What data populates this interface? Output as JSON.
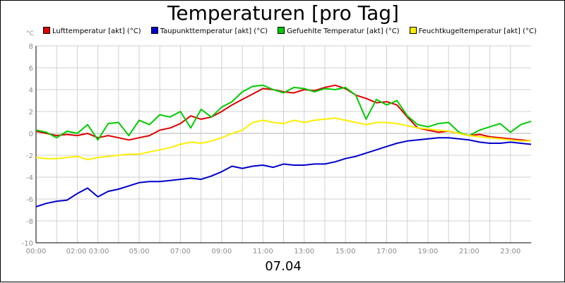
{
  "chart_data": {
    "type": "line",
    "title": "Temperaturen [pro Tag]",
    "unit_label": "°C",
    "xlabel": "07.04",
    "x_tick_labels": [
      "00:00",
      "02:00 03:00",
      "05:00",
      "07:00",
      "09:00",
      "11:00",
      "13:00",
      "15:00",
      "17:00",
      "19:00",
      "21:00",
      "23:00"
    ],
    "x_tick_hours": [
      0,
      2.5,
      5,
      7,
      9,
      11,
      13,
      15,
      17,
      19,
      21,
      23
    ],
    "xlim": [
      0,
      24
    ],
    "ylim": [
      -10,
      8
    ],
    "y_ticks": [
      8,
      6,
      4,
      2,
      0,
      -2,
      -4,
      -6,
      -8,
      -10
    ],
    "grid": true,
    "legend_position": "top",
    "x_hours": [
      0,
      0.5,
      1,
      1.5,
      2,
      2.5,
      3,
      3.5,
      4,
      4.5,
      5,
      5.5,
      6,
      6.5,
      7,
      7.5,
      8,
      8.5,
      9,
      9.5,
      10,
      10.5,
      11,
      11.5,
      12,
      12.5,
      13,
      13.5,
      14,
      14.5,
      15,
      15.5,
      16,
      16.5,
      17,
      17.5,
      18,
      18.5,
      19,
      19.5,
      20,
      20.5,
      21,
      21.5,
      22,
      22.5,
      23,
      23.5,
      24
    ],
    "series": [
      {
        "name": "Lufttemperatur [akt] (°C)",
        "color": "#e00000",
        "values": [
          0.2,
          0.0,
          -0.2,
          -0.1,
          -0.2,
          0.0,
          -0.4,
          -0.2,
          -0.4,
          -0.6,
          -0.4,
          -0.2,
          0.3,
          0.5,
          0.9,
          1.6,
          1.3,
          1.5,
          2.0,
          2.6,
          3.1,
          3.6,
          4.1,
          4.0,
          3.8,
          3.7,
          4.0,
          3.9,
          4.2,
          4.4,
          4.1,
          3.5,
          3.2,
          2.8,
          2.9,
          2.6,
          1.5,
          0.5,
          0.3,
          0.1,
          0.2,
          0.0,
          -0.2,
          -0.1,
          -0.3,
          -0.4,
          -0.5,
          -0.6,
          -0.7
        ]
      },
      {
        "name": "Taupunkttemperatur [akt] (°C)",
        "color": "#0000cc",
        "values": [
          -6.7,
          -6.4,
          -6.2,
          -6.1,
          -5.5,
          -5.0,
          -5.8,
          -5.3,
          -5.1,
          -4.8,
          -4.5,
          -4.4,
          -4.4,
          -4.3,
          -4.2,
          -4.1,
          -4.2,
          -3.9,
          -3.5,
          -3.0,
          -3.2,
          -3.0,
          -2.9,
          -3.1,
          -2.8,
          -2.9,
          -2.9,
          -2.8,
          -2.8,
          -2.6,
          -2.3,
          -2.1,
          -1.8,
          -1.5,
          -1.2,
          -0.9,
          -0.7,
          -0.6,
          -0.5,
          -0.4,
          -0.4,
          -0.5,
          -0.6,
          -0.8,
          -0.9,
          -0.9,
          -0.8,
          -0.9,
          -1.0
        ]
      },
      {
        "name": "Gefuehlte Temperatur [akt] (°C)",
        "color": "#00cc00",
        "values": [
          0.3,
          0.1,
          -0.4,
          0.2,
          0.0,
          0.8,
          -0.6,
          0.9,
          1.0,
          -0.2,
          1.2,
          0.8,
          1.7,
          1.5,
          2.0,
          0.5,
          2.2,
          1.5,
          2.4,
          2.9,
          3.8,
          4.3,
          4.4,
          4.0,
          3.7,
          4.2,
          4.1,
          3.8,
          4.1,
          4.0,
          4.2,
          3.5,
          1.3,
          3.1,
          2.6,
          3.0,
          1.6,
          0.8,
          0.6,
          0.9,
          1.0,
          0.1,
          -0.2,
          0.3,
          0.6,
          0.9,
          0.1,
          0.8,
          1.1
        ]
      },
      {
        "name": "Feuchtkugeltemperatur [akt] (°C)",
        "color": "#ffee00",
        "values": [
          -2.2,
          -2.3,
          -2.3,
          -2.2,
          -2.1,
          -2.4,
          -2.2,
          -2.1,
          -2.0,
          -1.9,
          -1.9,
          -1.7,
          -1.5,
          -1.3,
          -1.0,
          -0.8,
          -0.9,
          -0.7,
          -0.4,
          0.0,
          0.3,
          1.0,
          1.2,
          1.0,
          0.9,
          1.2,
          1.0,
          1.2,
          1.3,
          1.4,
          1.2,
          1.0,
          0.8,
          1.0,
          1.0,
          0.9,
          0.7,
          0.5,
          0.4,
          0.3,
          0.2,
          0.0,
          -0.2,
          -0.3,
          -0.4,
          -0.5,
          -0.6,
          -0.7,
          -0.7
        ]
      }
    ]
  }
}
